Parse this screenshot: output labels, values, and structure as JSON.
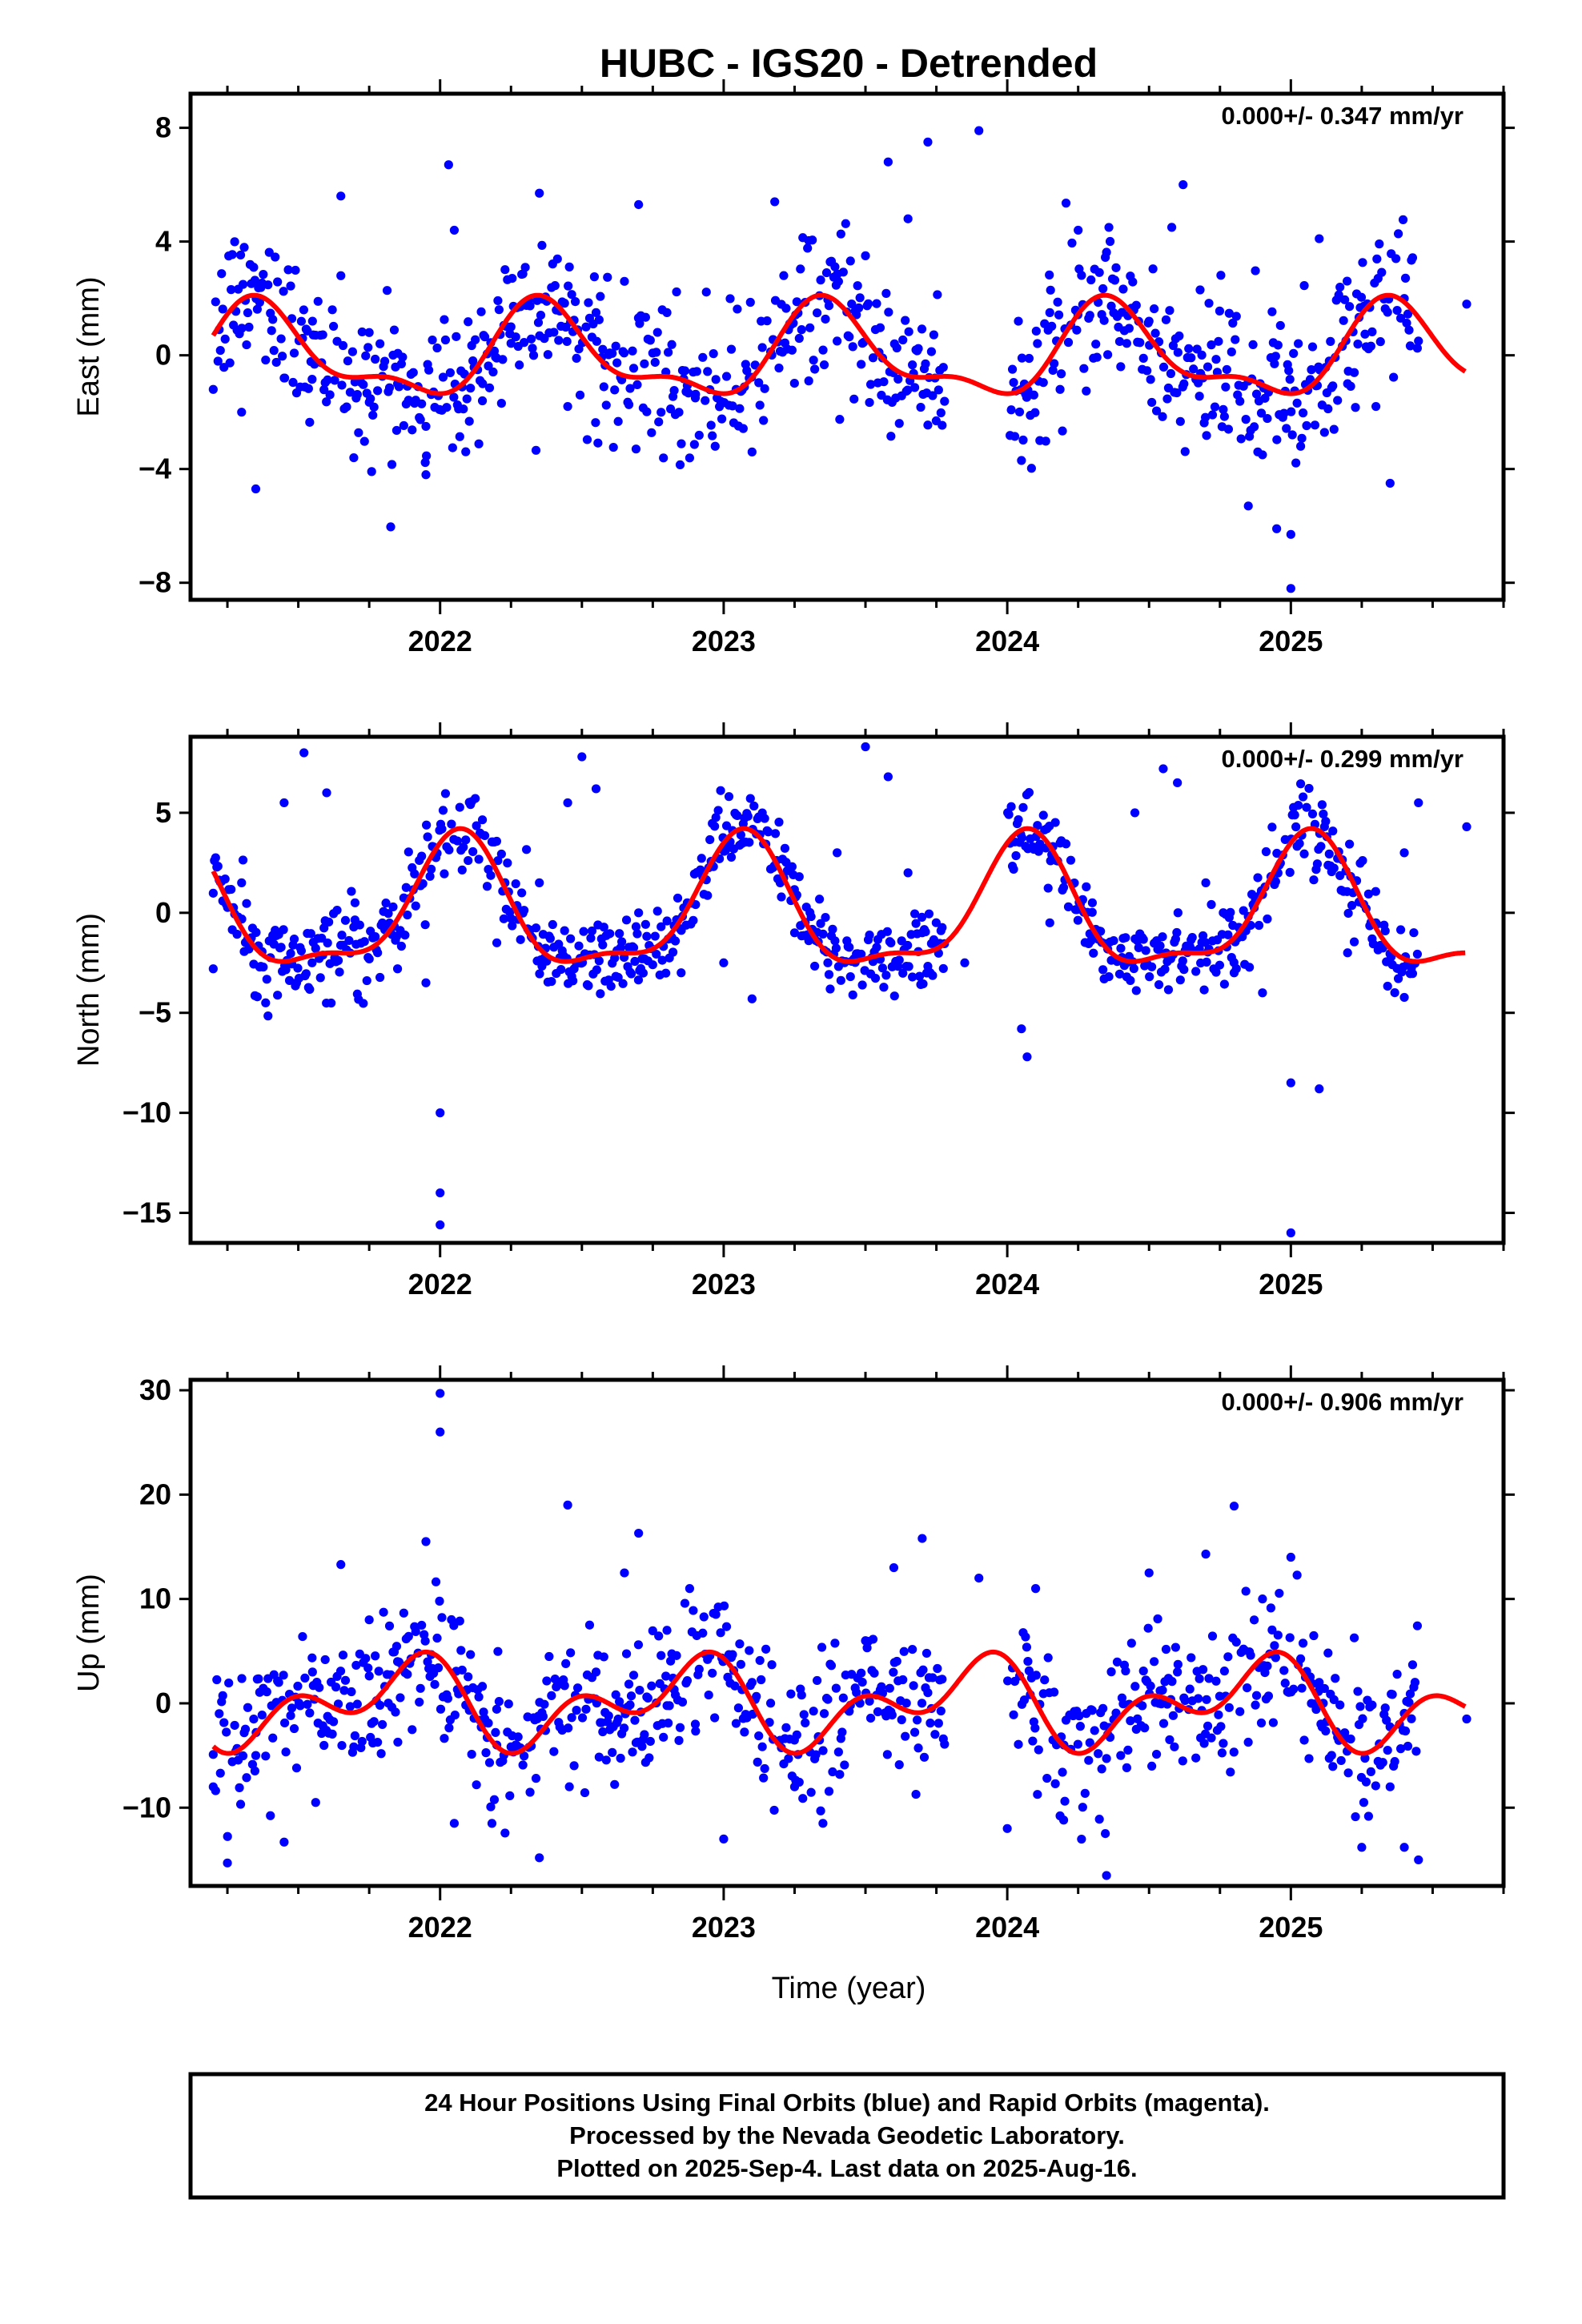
{
  "title": "HUBC - IGS20 - Detrended",
  "colors": {
    "points": "#0000ff",
    "fit": "#ff0000",
    "axes": "#000000"
  },
  "x_ticks": [
    "2022",
    "2023",
    "2024",
    "2025"
  ],
  "x_label": "Time (year)",
  "footer": {
    "line1": "24 Hour Positions Using Final Orbits (blue) and Rapid Orbits (magenta).",
    "line2": "Processed by the Nevada Geodetic Laboratory.",
    "line3": "Plotted on 2025-Sep-4. Last data on 2025-Aug-16."
  },
  "chart_data": [
    {
      "type": "scatter",
      "ylabel": "East (mm)",
      "rate_text": "0.000+/- 0.347 mm/yr",
      "xlim": [
        2021.12,
        2025.75
      ],
      "ylim": [
        -8.6,
        9.2
      ],
      "yticks": [
        -8,
        -4,
        0,
        4,
        8
      ],
      "ytick_labels": [
        "−8",
        "−4",
        "0",
        "4",
        "8"
      ],
      "seasonal_fit": {
        "a1": 1.1,
        "b1": -1.0,
        "a2": -0.55,
        "b2": -0.35,
        "period": "annual + semi-annual"
      },
      "series_points": [
        [
          2021.2,
          -1.2
        ],
        [
          2021.3,
          -2.0
        ],
        [
          2021.35,
          -4.7
        ],
        [
          2021.45,
          -0.8
        ],
        [
          2021.55,
          1.2
        ],
        [
          2021.65,
          2.8
        ],
        [
          2021.65,
          5.6
        ],
        [
          2021.75,
          0.8
        ],
        [
          2021.85,
          -1.0
        ],
        [
          2021.95,
          -2.5
        ],
        [
          2021.95,
          -4.2
        ],
        [
          2022.03,
          6.7
        ],
        [
          2022.05,
          4.4
        ],
        [
          2022.15,
          -1.0
        ],
        [
          2022.25,
          1.0
        ],
        [
          2022.35,
          5.7
        ],
        [
          2022.45,
          -1.8
        ],
        [
          2022.55,
          1.5
        ],
        [
          2022.65,
          2.6
        ],
        [
          2022.7,
          5.3
        ],
        [
          2022.8,
          1.5
        ],
        [
          2022.9,
          -1.5
        ],
        [
          2022.97,
          -3.2
        ],
        [
          2023.1,
          -3.4
        ],
        [
          2023.18,
          5.4
        ],
        [
          2023.3,
          -0.9
        ],
        [
          2023.4,
          0.5
        ],
        [
          2023.5,
          3.5
        ],
        [
          2023.58,
          6.8
        ],
        [
          2023.65,
          4.8
        ],
        [
          2023.72,
          7.5
        ],
        [
          2023.9,
          7.9
        ],
        [
          2024.05,
          -3.7
        ],
        [
          2024.15,
          1.5
        ],
        [
          2024.25,
          4.4
        ],
        [
          2024.4,
          -0.4
        ],
        [
          2024.5,
          1.2
        ],
        [
          2024.58,
          4.5
        ],
        [
          2024.62,
          6.0
        ],
        [
          2024.68,
          2.3
        ],
        [
          2024.78,
          -2.6
        ],
        [
          2024.85,
          -5.3
        ],
        [
          2024.9,
          -3.5
        ],
        [
          2024.95,
          -6.1
        ],
        [
          2025.0,
          -6.3
        ],
        [
          2025.0,
          -8.2
        ],
        [
          2025.1,
          4.1
        ],
        [
          2025.2,
          -1.0
        ],
        [
          2025.3,
          -1.8
        ],
        [
          2025.35,
          -4.5
        ],
        [
          2025.45,
          0.5
        ],
        [
          2025.62,
          1.8
        ]
      ]
    },
    {
      "type": "scatter",
      "ylabel": "North (mm)",
      "rate_text": "0.000+/- 0.299 mm/yr",
      "xlim": [
        2021.12,
        2025.75
      ],
      "ylim": [
        -16.5,
        8.8
      ],
      "yticks": [
        -15,
        -10,
        -5,
        0,
        5
      ],
      "ytick_labels": [
        "−15",
        "−10",
        "−5",
        "0",
        "5"
      ],
      "seasonal_fit": {
        "a1": 1.2,
        "b1": 2.9,
        "a2": 0.9,
        "b2": 0.6,
        "period": "annual + semi-annual"
      },
      "series_points": [
        [
          2021.2,
          -2.8
        ],
        [
          2021.3,
          1.5
        ],
        [
          2021.45,
          5.5
        ],
        [
          2021.52,
          8.0
        ],
        [
          2021.6,
          6.0
        ],
        [
          2021.7,
          0.5
        ],
        [
          2021.85,
          -2.8
        ],
        [
          2021.95,
          -3.5
        ],
        [
          2022.0,
          -10.0
        ],
        [
          2022.0,
          -14.0
        ],
        [
          2022.0,
          -15.6
        ],
        [
          2022.2,
          -1.5
        ],
        [
          2022.35,
          1.5
        ],
        [
          2022.45,
          5.5
        ],
        [
          2022.5,
          7.8
        ],
        [
          2022.55,
          6.2
        ],
        [
          2022.7,
          0.0
        ],
        [
          2022.85,
          -3.0
        ],
        [
          2023.0,
          -2.5
        ],
        [
          2023.1,
          -4.3
        ],
        [
          2023.25,
          -1.0
        ],
        [
          2023.4,
          3.0
        ],
        [
          2023.5,
          8.3
        ],
        [
          2023.58,
          6.8
        ],
        [
          2023.65,
          2.0
        ],
        [
          2023.7,
          -1.0
        ],
        [
          2023.85,
          -2.5
        ],
        [
          2024.05,
          -5.8
        ],
        [
          2024.07,
          -7.2
        ],
        [
          2024.15,
          -0.5
        ],
        [
          2024.3,
          0.5
        ],
        [
          2024.45,
          5.0
        ],
        [
          2024.55,
          7.2
        ],
        [
          2024.6,
          6.5
        ],
        [
          2024.7,
          1.5
        ],
        [
          2024.8,
          -3.0
        ],
        [
          2024.9,
          -4.0
        ],
        [
          2025.0,
          -8.5
        ],
        [
          2025.0,
          -16.0
        ],
        [
          2025.1,
          -8.8
        ],
        [
          2025.2,
          -2.0
        ],
        [
          2025.3,
          -0.5
        ],
        [
          2025.4,
          3.0
        ],
        [
          2025.45,
          5.5
        ],
        [
          2025.62,
          4.3
        ]
      ]
    },
    {
      "type": "scatter",
      "ylabel": "Up (mm)",
      "rate_text": "0.000+/- 0.906 mm/yr",
      "xlim": [
        2021.12,
        2025.75
      ],
      "ylim": [
        -17.5,
        31.0
      ],
      "yticks": [
        -10,
        0,
        10,
        20,
        30
      ],
      "ytick_labels": [
        "−10",
        "0",
        "10",
        "20",
        "30"
      ],
      "seasonal_fit": {
        "a1": -2.3,
        "b1": 1.8,
        "a2": -0.8,
        "b2": 2.5,
        "period": "annual + semi-annual"
      },
      "series_points": [
        [
          2021.2,
          -8.0
        ],
        [
          2021.25,
          -15.3
        ],
        [
          2021.35,
          -5.0
        ],
        [
          2021.45,
          -13.3
        ],
        [
          2021.55,
          3.0
        ],
        [
          2021.65,
          13.3
        ],
        [
          2021.75,
          8.0
        ],
        [
          2021.85,
          4.0
        ],
        [
          2021.95,
          15.5
        ],
        [
          2022.0,
          29.7
        ],
        [
          2022.0,
          26.0
        ],
        [
          2022.05,
          -11.5
        ],
        [
          2022.2,
          -4.0
        ],
        [
          2022.35,
          -14.8
        ],
        [
          2022.45,
          19.0
        ],
        [
          2022.55,
          3.0
        ],
        [
          2022.65,
          12.5
        ],
        [
          2022.7,
          16.3
        ],
        [
          2022.8,
          7.0
        ],
        [
          2022.9,
          -2.0
        ],
        [
          2023.0,
          -13.0
        ],
        [
          2023.1,
          2.0
        ],
        [
          2023.25,
          -8.0
        ],
        [
          2023.35,
          -11.5
        ],
        [
          2023.5,
          6.0
        ],
        [
          2023.6,
          13.0
        ],
        [
          2023.7,
          15.8
        ],
        [
          2023.9,
          12.0
        ],
        [
          2024.0,
          -12.0
        ],
        [
          2024.1,
          11.0
        ],
        [
          2024.2,
          -4.0
        ],
        [
          2024.35,
          -16.5
        ],
        [
          2024.4,
          -5.0
        ],
        [
          2024.5,
          12.5
        ],
        [
          2024.6,
          3.0
        ],
        [
          2024.7,
          14.3
        ],
        [
          2024.8,
          18.9
        ],
        [
          2024.9,
          10.0
        ],
        [
          2025.0,
          14.0
        ],
        [
          2025.1,
          2.0
        ],
        [
          2025.25,
          -13.8
        ],
        [
          2025.35,
          -8.0
        ],
        [
          2025.4,
          -13.8
        ],
        [
          2025.45,
          -15.0
        ],
        [
          2025.62,
          -1.5
        ]
      ]
    }
  ]
}
